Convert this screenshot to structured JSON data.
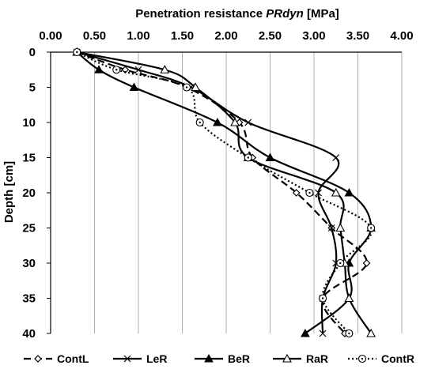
{
  "chart_data": {
    "type": "line",
    "orientation": "depth-profile",
    "title": "",
    "xlabel_prefix": "Penetration resistance ",
    "xlabel_italic": "PRdyn",
    "xlabel_unit": " [MPa]",
    "ylabel": "Depth [cm]",
    "xlim": [
      0,
      4
    ],
    "ylim": [
      0,
      40
    ],
    "y_inverted": true,
    "x_axis_position": "top",
    "grid_vertical": true,
    "grid_horizontal": false,
    "xticks": [
      "0.00",
      "0.50",
      "1.00",
      "1.50",
      "2.00",
      "2.50",
      "3.00",
      "3.50",
      "4.00"
    ],
    "yticks": [
      "0",
      "5",
      "10",
      "15",
      "20",
      "25",
      "30",
      "35",
      "40"
    ],
    "depth": [
      0,
      2.5,
      5,
      10,
      15,
      20,
      25,
      30,
      35,
      40
    ],
    "legend_position": "bottom",
    "series": [
      {
        "name": "ContL",
        "line": "dashed",
        "marker": "diamond",
        "values": [
          0.3,
          0.85,
          1.55,
          2.15,
          2.3,
          2.8,
          3.2,
          3.6,
          3.1,
          3.35
        ]
      },
      {
        "name": "LeR",
        "line": "solid",
        "marker": "x",
        "values": [
          0.3,
          1.0,
          1.6,
          2.25,
          3.25,
          3.05,
          3.2,
          3.25,
          3.1,
          3.1
        ]
      },
      {
        "name": "BeR",
        "line": "solid",
        "marker": "triangle-filled",
        "values": [
          0.3,
          0.55,
          0.95,
          1.9,
          2.5,
          3.4,
          3.65,
          3.4,
          3.4,
          2.9
        ]
      },
      {
        "name": "RaR",
        "line": "solid",
        "marker": "triangle-open",
        "values": [
          0.3,
          1.3,
          1.65,
          2.1,
          2.25,
          3.25,
          3.3,
          3.35,
          3.4,
          3.65
        ]
      },
      {
        "name": "ContR",
        "line": "dotted",
        "marker": "circle-dot",
        "values": [
          0.3,
          0.75,
          1.55,
          1.7,
          2.25,
          2.95,
          3.65,
          3.3,
          3.1,
          3.4
        ]
      }
    ]
  }
}
